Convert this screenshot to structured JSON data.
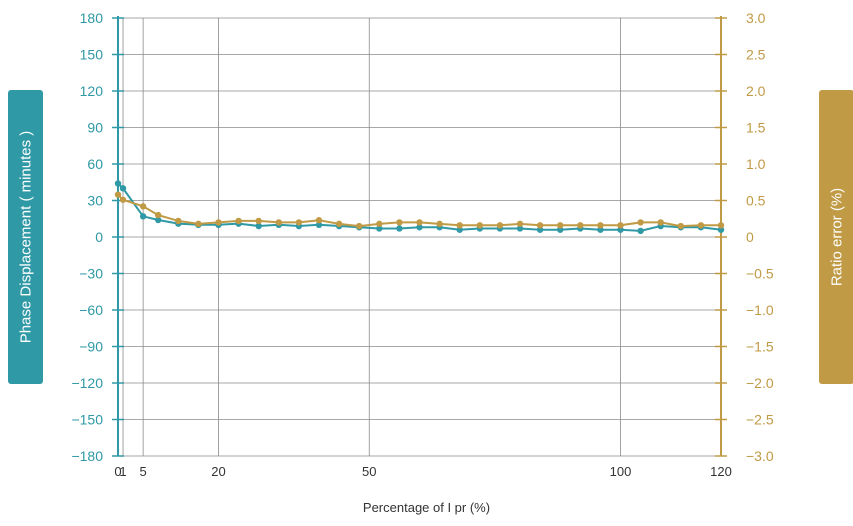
{
  "chart_data": {
    "type": "line",
    "xlabel": "Percentage of I pr (%)",
    "ylabel_left": "Phase Displacement ( minutes )",
    "ylabel_right": "Ratio error (%)",
    "x_ticks": [
      0,
      1,
      5,
      20,
      50,
      100,
      120
    ],
    "x_tick_labels": [
      "0",
      "1",
      "5",
      "20",
      "50",
      "100",
      "120"
    ],
    "xlim": [
      0,
      120
    ],
    "ylim_left": [
      -180,
      180
    ],
    "y_left_ticks": [
      180,
      150,
      120,
      90,
      60,
      30,
      0,
      -30,
      -60,
      -90,
      -120,
      -150,
      -180
    ],
    "y_left_tick_labels": [
      "180",
      "150",
      "120",
      "90",
      "60",
      "30",
      "0",
      "−30",
      "−60",
      "−90",
      "−120",
      "−150",
      "−180"
    ],
    "ylim_right": [
      -3.0,
      3.0
    ],
    "y_right_ticks": [
      3.0,
      2.5,
      2.0,
      1.5,
      1.0,
      0.5,
      0,
      -0.5,
      -1.0,
      -1.5,
      -2.0,
      -2.5,
      -3.0
    ],
    "y_right_tick_labels": [
      "3.0",
      "2.5",
      "2.0",
      "1.5",
      "1.0",
      "0.5",
      "0",
      "−0.5",
      "−1.0",
      "−1.5",
      "−2.0",
      "−2.5",
      "−3.0"
    ],
    "grid": true,
    "series": [
      {
        "axis": "left",
        "color": "#2f99a6",
        "x": [
          0,
          1,
          5,
          8,
          12,
          16,
          20,
          24,
          28,
          32,
          36,
          40,
          44,
          48,
          52,
          56,
          60,
          64,
          68,
          72,
          76,
          80,
          84,
          88,
          92,
          96,
          100,
          104,
          108,
          112,
          116,
          120
        ],
        "values": [
          44,
          40,
          17,
          14,
          11,
          10,
          10,
          11,
          9,
          10,
          9,
          10,
          9,
          8,
          7,
          7,
          8,
          8,
          6,
          7,
          7,
          7,
          6,
          6,
          7,
          6,
          6,
          5,
          9,
          8,
          8,
          6
        ]
      },
      {
        "axis": "right",
        "color": "#c09a45",
        "x": [
          0,
          1,
          5,
          8,
          12,
          16,
          20,
          24,
          28,
          32,
          36,
          40,
          44,
          48,
          52,
          56,
          60,
          64,
          68,
          72,
          76,
          80,
          84,
          88,
          92,
          96,
          100,
          104,
          108,
          112,
          116,
          120
        ],
        "values": [
          0.58,
          0.51,
          0.42,
          0.3,
          0.22,
          0.18,
          0.2,
          0.22,
          0.22,
          0.2,
          0.2,
          0.23,
          0.18,
          0.15,
          0.18,
          0.2,
          0.2,
          0.18,
          0.16,
          0.16,
          0.16,
          0.18,
          0.16,
          0.16,
          0.16,
          0.16,
          0.16,
          0.2,
          0.2,
          0.15,
          0.16,
          0.16
        ]
      }
    ]
  },
  "tabs": {
    "left_color": "#2f99a6",
    "right_color": "#c09a45"
  }
}
